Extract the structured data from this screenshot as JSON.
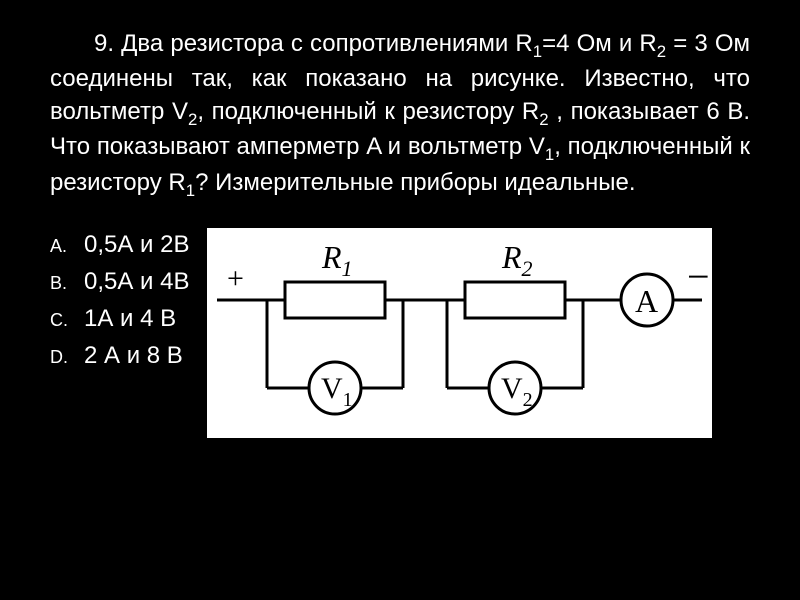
{
  "question": {
    "number": "9.",
    "text_html": "Два резистора с сопротивлениями R<sub>1</sub>=4 Ом и R<sub>2</sub> = 3 Ом соединены так, как показано на рисунке. Известно, что вольтметр V<sub>2</sub>, подключенный к резистору R<sub>2</sub> , показывает 6 В. Что показывают амперметр A и вольтметр V<sub>1</sub>, подключенный к резистору R<sub>1</sub>? Измерительные приборы идеальные."
  },
  "answers": [
    {
      "marker": "A.",
      "text": "0,5А и 2В"
    },
    {
      "marker": "B.",
      "text": "0,5А и 4В"
    },
    {
      "marker": "C.",
      "text": "1А и 4 В"
    },
    {
      "marker": "D.",
      "text": "2 А и 8 В"
    }
  ],
  "circuit": {
    "label_R1": "R",
    "label_R1_sub": "1",
    "label_R2": "R",
    "label_R2_sub": "2",
    "label_A": "A",
    "label_V1": "V",
    "label_V1_sub": "1",
    "label_V2": "V",
    "label_V2_sub": "2",
    "plus": "+",
    "minus": "−",
    "colors": {
      "bg": "#ffffff",
      "stroke": "#000000"
    },
    "stroke_width": 3
  },
  "colors": {
    "background": "#000000",
    "text": "#ffffff",
    "figure_bg": "#ffffff"
  }
}
